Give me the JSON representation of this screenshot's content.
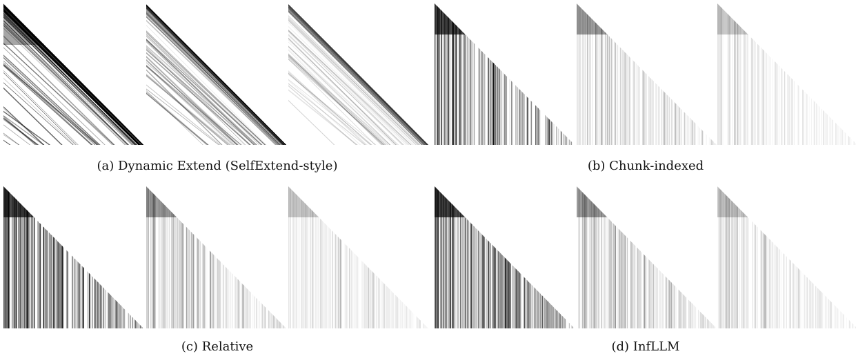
{
  "figure": {
    "panels": [
      {
        "caption": "(a) Dynamic Extend (SelfExtend-style)"
      },
      {
        "caption": "(b) Chunk-indexed"
      },
      {
        "caption": "(c) Relative"
      },
      {
        "caption": "(d) InfLLM"
      }
    ]
  }
}
